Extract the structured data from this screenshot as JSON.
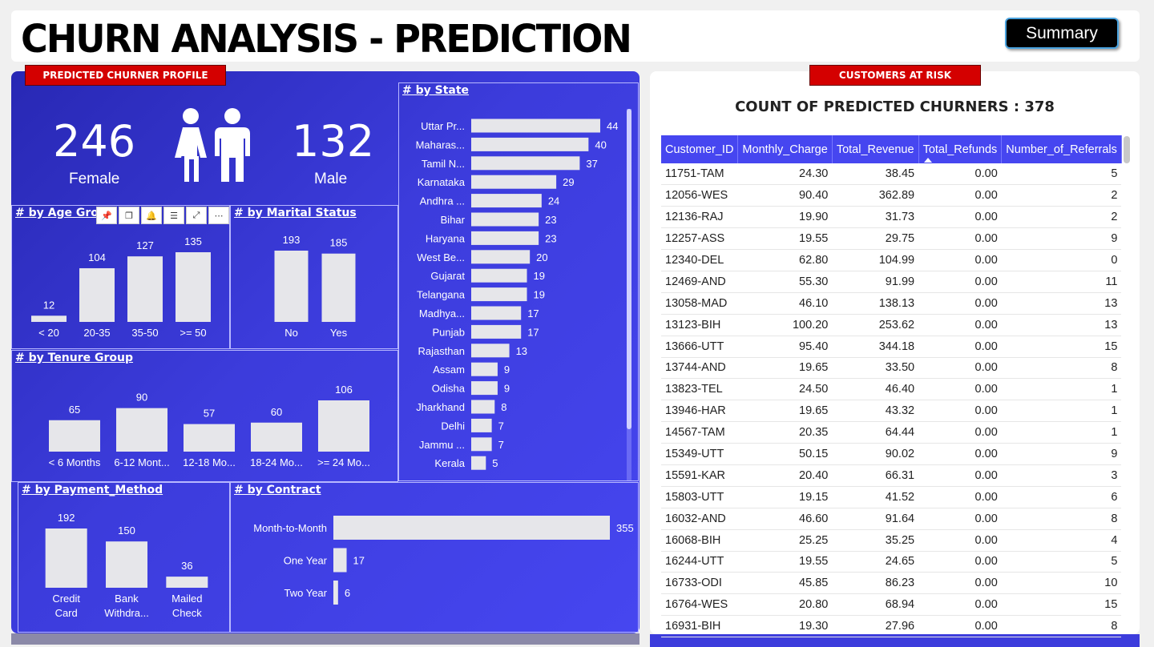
{
  "header": {
    "title": "CHURN ANALYSIS - PREDICTION",
    "summary_button": "Summary"
  },
  "profile": {
    "tag": "PREDICTED CHURNER PROFILE",
    "female_count": "246",
    "female_label": "Female",
    "male_count": "132",
    "male_label": "Male"
  },
  "toolbar": {
    "icons": [
      "pin-icon",
      "copy-icon",
      "bell-icon",
      "filter-icon",
      "expand-icon",
      "more-icon"
    ]
  },
  "chart_data": [
    {
      "type": "bar",
      "title": "# by Age Group",
      "categories": [
        "< 20",
        "20-35",
        "35-50",
        ">= 50"
      ],
      "values": [
        12,
        104,
        127,
        135
      ]
    },
    {
      "type": "bar",
      "title": "# by Marital Status",
      "categories": [
        "No",
        "Yes"
      ],
      "values": [
        193,
        185
      ]
    },
    {
      "type": "bar",
      "title": "# by Tenure Group",
      "categories": [
        "< 6 Months",
        "6-12 Mont...",
        "12-18 Mo...",
        "18-24 Mo...",
        ">= 24 Mo..."
      ],
      "values": [
        65,
        90,
        57,
        60,
        106
      ]
    },
    {
      "type": "bar",
      "title": "# by Payment_Method",
      "categories": [
        "Credit Card",
        "Bank Withdra...",
        "Mailed Check"
      ],
      "values": [
        192,
        150,
        36
      ]
    },
    {
      "type": "bar",
      "orientation": "horizontal",
      "title": "# by Contract",
      "categories": [
        "Month-to-Month",
        "One Year",
        "Two Year"
      ],
      "values": [
        355,
        17,
        6
      ]
    },
    {
      "type": "bar",
      "orientation": "horizontal",
      "title": "# by State",
      "categories": [
        "Uttar Pr...",
        "Maharas...",
        "Tamil N...",
        "Karnataka",
        "Andhra ...",
        "Bihar",
        "Haryana",
        "West Be...",
        "Gujarat",
        "Telangana",
        "Madhya...",
        "Punjab",
        "Rajasthan",
        "Assam",
        "Odisha",
        "Jharkhand",
        "Delhi",
        "Jammu ...",
        "Kerala"
      ],
      "values": [
        44,
        40,
        37,
        29,
        24,
        23,
        23,
        20,
        19,
        19,
        17,
        17,
        13,
        9,
        9,
        8,
        7,
        7,
        5
      ]
    }
  ],
  "risk": {
    "tag": "CUSTOMERS AT RISK",
    "count_title": "COUNT OF PREDICTED CHURNERS : 378",
    "columns": [
      "Customer_ID",
      "Monthly_Charge",
      "Total_Revenue",
      "Total_Refunds",
      "Number_of_Referrals"
    ],
    "rows": [
      [
        "11751-TAM",
        "24.30",
        "38.45",
        "0.00",
        "5"
      ],
      [
        "12056-WES",
        "90.40",
        "362.89",
        "0.00",
        "2"
      ],
      [
        "12136-RAJ",
        "19.90",
        "31.73",
        "0.00",
        "2"
      ],
      [
        "12257-ASS",
        "19.55",
        "29.75",
        "0.00",
        "9"
      ],
      [
        "12340-DEL",
        "62.80",
        "104.99",
        "0.00",
        "0"
      ],
      [
        "12469-AND",
        "55.30",
        "91.99",
        "0.00",
        "11"
      ],
      [
        "13058-MAD",
        "46.10",
        "138.13",
        "0.00",
        "13"
      ],
      [
        "13123-BIH",
        "100.20",
        "253.62",
        "0.00",
        "13"
      ],
      [
        "13666-UTT",
        "95.40",
        "344.18",
        "0.00",
        "15"
      ],
      [
        "13744-AND",
        "19.65",
        "33.50",
        "0.00",
        "8"
      ],
      [
        "13823-TEL",
        "24.50",
        "46.40",
        "0.00",
        "1"
      ],
      [
        "13946-HAR",
        "19.65",
        "43.32",
        "0.00",
        "1"
      ],
      [
        "14567-TAM",
        "20.35",
        "64.44",
        "0.00",
        "1"
      ],
      [
        "15349-UTT",
        "50.15",
        "90.02",
        "0.00",
        "9"
      ],
      [
        "15591-KAR",
        "20.40",
        "66.31",
        "0.00",
        "3"
      ],
      [
        "15803-UTT",
        "19.15",
        "41.52",
        "0.00",
        "6"
      ],
      [
        "16032-AND",
        "46.60",
        "91.64",
        "0.00",
        "8"
      ],
      [
        "16068-BIH",
        "25.25",
        "35.25",
        "0.00",
        "4"
      ],
      [
        "16244-UTT",
        "19.55",
        "24.65",
        "0.00",
        "5"
      ],
      [
        "16733-ODI",
        "45.85",
        "86.23",
        "0.00",
        "10"
      ],
      [
        "16764-WES",
        "20.80",
        "68.94",
        "0.00",
        "15"
      ],
      [
        "16931-BIH",
        "19.30",
        "27.96",
        "0.00",
        "8"
      ]
    ]
  }
}
